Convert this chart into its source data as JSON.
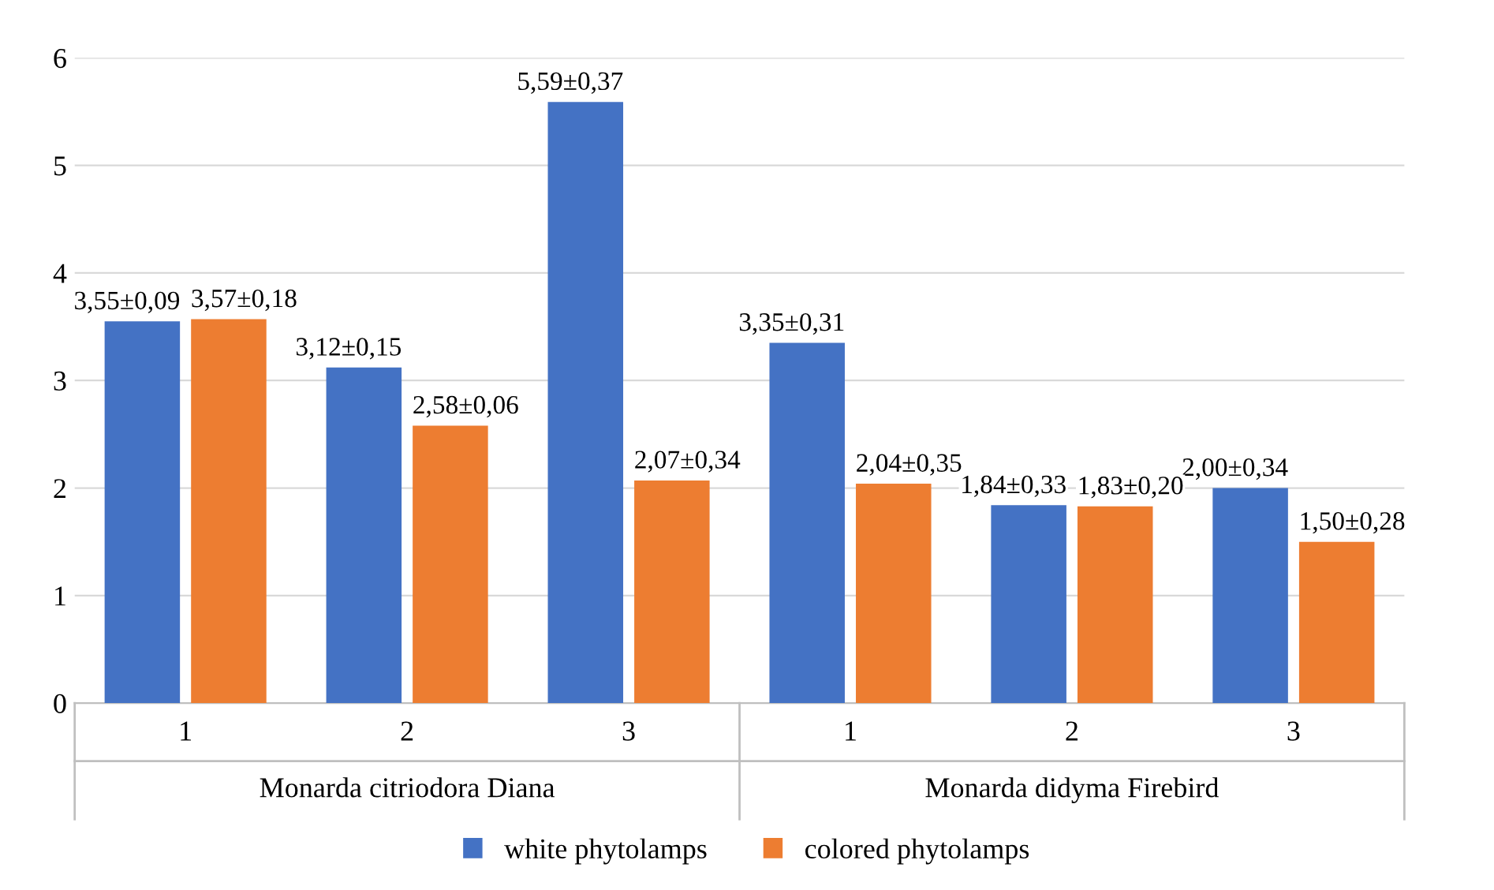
{
  "chart_data": {
    "type": "bar",
    "categories": [
      "1",
      "2",
      "3",
      "1",
      "2",
      "3"
    ],
    "series": [
      {
        "name": "white phytolamps",
        "color": "#4472c4",
        "values": [
          3.55,
          3.12,
          5.59,
          3.35,
          1.84,
          2.0
        ],
        "value_labels": [
          "3,55±0,09",
          "3,12±0,15",
          "5,59±0,37",
          "3,35±0,31",
          "1,84±0,33",
          "2,00±0,34"
        ]
      },
      {
        "name": "colored phytolamps",
        "color": "#ed7d31",
        "values": [
          3.57,
          2.58,
          2.07,
          2.04,
          1.83,
          1.5
        ],
        "value_labels": [
          "3,57±0,18",
          "2,58±0,06",
          "2,07±0,34",
          "2,04±0,35",
          "1,83±0,20",
          "1,50±0,28"
        ]
      }
    ],
    "annotations": [
      "Monarda citriodora Diana",
      "Monarda didyma Firebird"
    ],
    "ylim": [
      0,
      6
    ],
    "yticks": [
      0,
      1,
      2,
      3,
      4,
      5,
      6
    ],
    "grid": "y",
    "legend": "bottom"
  }
}
